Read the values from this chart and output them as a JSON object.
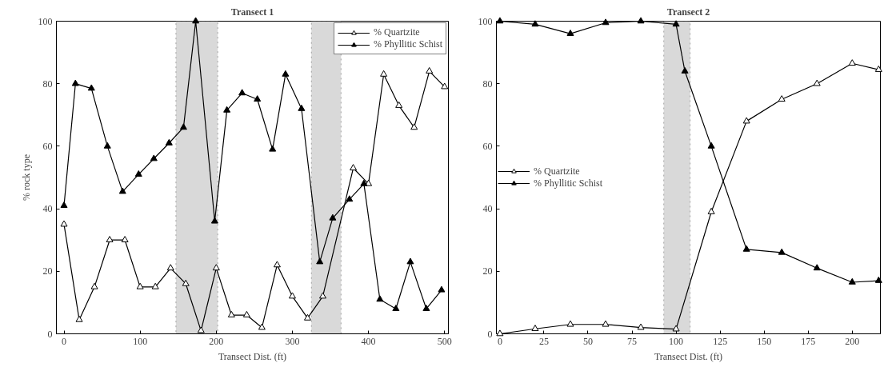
{
  "chart_data": [
    {
      "type": "line",
      "title": "Transect 1",
      "xlabel": "Transect Dist. (ft)",
      "ylabel": "% rock type",
      "xlim": [
        -10,
        505
      ],
      "ylim": [
        0,
        100
      ],
      "xticks": [
        0,
        100,
        200,
        300,
        400,
        500
      ],
      "yticks": [
        0,
        20,
        40,
        60,
        80,
        100
      ],
      "grid": false,
      "legend": "top right",
      "line_style": "solid",
      "bands": [
        {
          "axis": "x",
          "from": 147,
          "to": 202,
          "color": "#d9d9d9"
        },
        {
          "axis": "x",
          "from": 325,
          "to": 364,
          "color": "#d9d9d9"
        }
      ],
      "series": [
        {
          "name": "% Quartzite",
          "color": "#000000",
          "marker": "triangle_open",
          "x": [
            0,
            20,
            40,
            60,
            80,
            100,
            120,
            140,
            160,
            180,
            200,
            220,
            240,
            260,
            280,
            300,
            320,
            340,
            380,
            400,
            420,
            440,
            460,
            480,
            500
          ],
          "values": [
            35,
            4.5,
            15,
            30,
            30,
            15,
            15,
            21,
            16,
            1,
            21,
            6,
            6,
            2,
            22,
            12,
            5,
            12,
            53,
            48,
            83,
            73,
            66,
            84,
            79
          ]
        },
        {
          "name": "% Phyllitic Schist",
          "color": "#000000",
          "marker": "triangle",
          "x": [
            0,
            15,
            36,
            57,
            77,
            98,
            118,
            138,
            157,
            173,
            198,
            214,
            234,
            254,
            274,
            291,
            312,
            336,
            353,
            375,
            394,
            415,
            436,
            455,
            476,
            496
          ],
          "values": [
            41,
            80,
            78.5,
            60,
            45.5,
            51,
            56,
            61,
            66,
            100,
            36,
            71.5,
            77,
            75,
            59,
            83,
            72,
            23,
            37,
            43,
            48,
            11,
            8,
            23,
            8,
            14
          ]
        }
      ]
    },
    {
      "type": "line",
      "title": "Transect 2",
      "xlabel": "Transect Dist. (ft)",
      "xlim": [
        -2,
        216
      ],
      "ylim": [
        0,
        100
      ],
      "xticks": [
        0,
        25,
        50,
        75,
        100,
        125,
        150,
        175,
        200
      ],
      "yticks": [
        0,
        20,
        40,
        60,
        80,
        100
      ],
      "grid": false,
      "legend": "left",
      "line_style": "solid",
      "bands": [
        {
          "axis": "x",
          "from": 93,
          "to": 108,
          "color": "#d9d9d9"
        }
      ],
      "series": [
        {
          "name": "% Quartzite",
          "color": "#000000",
          "marker": "triangle_open",
          "x": [
            0,
            20,
            40,
            60,
            80,
            100,
            120,
            140,
            160,
            180,
            200,
            215
          ],
          "values": [
            0,
            1.6,
            3,
            3,
            2,
            1.5,
            39,
            68,
            75,
            80,
            86.5,
            84.5
          ]
        },
        {
          "name": "% Phyllitic Schist",
          "color": "#000000",
          "marker": "triangle",
          "x": [
            0,
            20,
            40,
            60,
            80,
            100,
            105,
            120,
            140,
            160,
            180,
            200,
            215
          ],
          "values": [
            100,
            99,
            96,
            99.5,
            100,
            99,
            84,
            60,
            27,
            26,
            21,
            16.5,
            17
          ]
        }
      ]
    }
  ]
}
